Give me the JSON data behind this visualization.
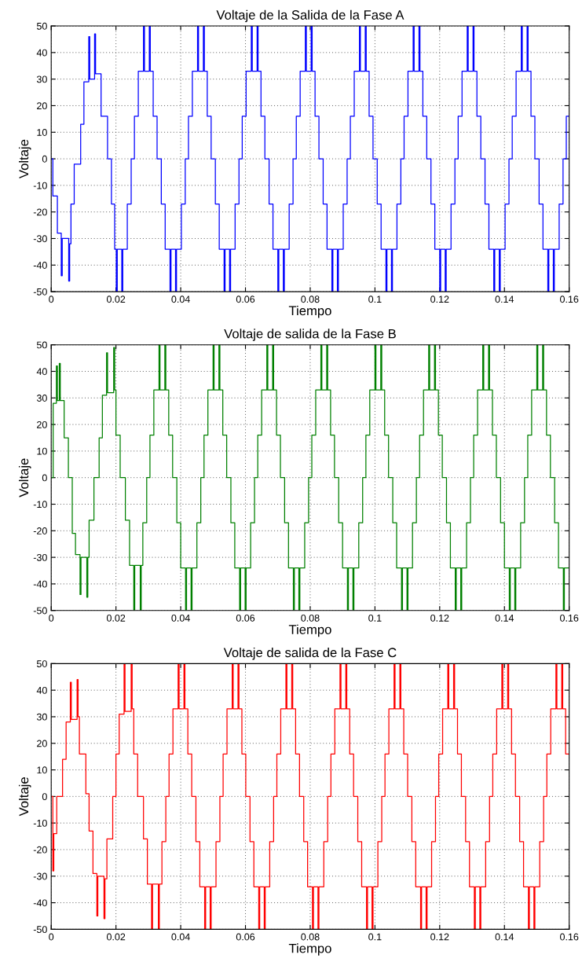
{
  "chart_data": [
    {
      "type": "step",
      "title": "Voltaje de la Salida de la Fase A",
      "xlabel": "Tiempo",
      "ylabel": "Voltaje",
      "xlim": [
        0,
        0.16
      ],
      "ylim": [
        -50,
        50
      ],
      "xticks": [
        0,
        0.02,
        0.04,
        0.06,
        0.08,
        0.1,
        0.12,
        0.14,
        0.16
      ],
      "yticks": [
        -50,
        -40,
        -30,
        -20,
        -10,
        0,
        10,
        20,
        30,
        40,
        50
      ],
      "grid": true,
      "series": [
        {
          "color": "#0000ff",
          "x": [
            0,
            0.0005,
            0.0019,
            0.0031,
            0.0034,
            0.0054,
            0.0057,
            0.0061,
            0.0071,
            0.0091,
            0.0101,
            0.0116,
            0.0119,
            0.0134,
            0.0137,
            0.0154,
            0.0174,
            0.0186,
            0.0196,
            0.0201,
            0.0204,
            0.0218,
            0.0221,
            0.0235,
            0.0247,
            0.0257,
            0.0269,
            0.0285,
            0.0288,
            0.0303,
            0.0306,
            0.0315,
            0.0327,
            0.034,
            0.0352,
            0.0367,
            0.037,
            0.0384,
            0.0387,
            0.0402,
            0.0414,
            0.0424,
            0.0436,
            0.0452,
            0.0455,
            0.047,
            0.0473,
            0.0482,
            0.0494,
            0.0507,
            0.0519,
            0.0534,
            0.0537,
            0.0551,
            0.0554,
            0.0568,
            0.058,
            0.059,
            0.0602,
            0.0618,
            0.0621,
            0.0636,
            0.0639,
            0.0648,
            0.066,
            0.0673,
            0.0685,
            0.07,
            0.0703,
            0.0717,
            0.072,
            0.0735,
            0.0747,
            0.0757,
            0.0769,
            0.0785,
            0.0788,
            0.0803,
            0.0806,
            0.0815,
            0.0827,
            0.084,
            0.0852,
            0.0867,
            0.087,
            0.0884,
            0.0887,
            0.0902,
            0.0914,
            0.0924,
            0.0936,
            0.0952,
            0.0955,
            0.097,
            0.0973,
            0.0982,
            0.0994,
            0.1007,
            0.1019,
            0.1034,
            0.1037,
            0.1051,
            0.1054,
            0.1068,
            0.108,
            0.109,
            0.1102,
            0.1118,
            0.1121,
            0.1136,
            0.1139,
            0.1148,
            0.116,
            0.1173,
            0.1185,
            0.12,
            0.1203,
            0.1217,
            0.122,
            0.1235,
            0.1247,
            0.1257,
            0.1269,
            0.1285,
            0.1288,
            0.1303,
            0.1306,
            0.1315,
            0.1327,
            0.134,
            0.1352,
            0.1367,
            0.137,
            0.1384,
            0.1387,
            0.1402,
            0.1414,
            0.1424,
            0.1436,
            0.1452,
            0.1455,
            0.147,
            0.1473,
            0.1482,
            0.1494,
            0.1507,
            0.1519,
            0.1534,
            0.1537,
            0.1551,
            0.1554,
            0.1569,
            0.1581,
            0.1591,
            0.16
          ],
          "values": [
            0,
            -14,
            -28,
            -44,
            -30,
            -46,
            -32,
            -17,
            -2,
            13,
            29,
            46,
            30,
            47,
            32,
            16,
            0,
            -17,
            -34,
            -50,
            -34,
            -50,
            -34,
            -17,
            0,
            16,
            33,
            50,
            33,
            50,
            33,
            16,
            0,
            -17,
            -34,
            -50,
            -34,
            -50,
            -34,
            -17,
            0,
            16,
            33,
            50,
            33,
            50,
            33,
            16,
            0,
            -17,
            -34,
            -50,
            -34,
            -50,
            -34,
            -17,
            0,
            16,
            33,
            50,
            33,
            50,
            33,
            16,
            0,
            -17,
            -34,
            -50,
            -34,
            -50,
            -34,
            -17,
            0,
            16,
            33,
            50,
            33,
            50,
            33,
            16,
            0,
            -17,
            -34,
            -50,
            -34,
            -50,
            -34,
            -17,
            0,
            16,
            33,
            50,
            33,
            50,
            33,
            16,
            0,
            -17,
            -34,
            -50,
            -34,
            -50,
            -34,
            -17,
            0,
            16,
            33,
            50,
            33,
            50,
            33,
            16,
            0,
            -17,
            -34,
            -50,
            -34,
            -50,
            -34,
            -17,
            0,
            16,
            33,
            50,
            33,
            50,
            33,
            16,
            0,
            -17,
            -34,
            -50,
            -34,
            -50,
            -34,
            -17,
            0,
            16,
            33,
            50,
            33,
            50,
            33,
            16,
            0,
            -17,
            -34,
            -50,
            -34,
            -50,
            -34,
            -17,
            0,
            16,
            16
          ]
        }
      ]
    },
    {
      "type": "step",
      "title": "Voltaje de salida de la Fase B",
      "xlabel": "Tiempo",
      "ylabel": "Voltaje",
      "xlim": [
        0,
        0.16
      ],
      "ylim": [
        -50,
        50
      ],
      "xticks": [
        0,
        0.02,
        0.04,
        0.06,
        0.08,
        0.1,
        0.12,
        0.14,
        0.16
      ],
      "yticks": [
        -50,
        -40,
        -30,
        -20,
        -10,
        0,
        10,
        20,
        30,
        40,
        50
      ],
      "grid": true,
      "series": [
        {
          "color": "#008000",
          "x": [
            0,
            0.0006,
            0.0016,
            0.0019,
            0.0025,
            0.0028,
            0.004,
            0.0053,
            0.0065,
            0.0075,
            0.0089,
            0.0092,
            0.011,
            0.0113,
            0.0117,
            0.0132,
            0.0148,
            0.0158,
            0.0171,
            0.0174,
            0.0193,
            0.0196,
            0.02,
            0.0213,
            0.0229,
            0.0242,
            0.0255,
            0.0258,
            0.0275,
            0.0278,
            0.0283,
            0.0295,
            0.0305,
            0.0317,
            0.0333,
            0.0336,
            0.0351,
            0.0354,
            0.0363,
            0.0375,
            0.0388,
            0.04,
            0.0415,
            0.0418,
            0.0432,
            0.0435,
            0.045,
            0.0462,
            0.0472,
            0.0484,
            0.05,
            0.0503,
            0.0518,
            0.0521,
            0.053,
            0.0542,
            0.0555,
            0.0567,
            0.0582,
            0.0585,
            0.0599,
            0.0602,
            0.0616,
            0.0628,
            0.0638,
            0.065,
            0.0666,
            0.0669,
            0.0684,
            0.0687,
            0.0696,
            0.0708,
            0.0721,
            0.0733,
            0.0748,
            0.0751,
            0.0765,
            0.0768,
            0.0783,
            0.0795,
            0.0805,
            0.0817,
            0.0833,
            0.0836,
            0.0851,
            0.0854,
            0.0863,
            0.0875,
            0.0888,
            0.09,
            0.0915,
            0.0918,
            0.0932,
            0.0935,
            0.095,
            0.0962,
            0.0972,
            0.0984,
            0.1,
            0.1003,
            0.1018,
            0.1021,
            0.103,
            0.1042,
            0.1055,
            0.1067,
            0.1082,
            0.1085,
            0.1099,
            0.1102,
            0.1116,
            0.1128,
            0.1138,
            0.115,
            0.1166,
            0.1169,
            0.1184,
            0.1187,
            0.1196,
            0.1208,
            0.1221,
            0.1233,
            0.1248,
            0.1251,
            0.1265,
            0.1268,
            0.1283,
            0.1295,
            0.1305,
            0.1317,
            0.1333,
            0.1336,
            0.1351,
            0.1354,
            0.1363,
            0.1375,
            0.1388,
            0.14,
            0.1415,
            0.1418,
            0.1432,
            0.1435,
            0.145,
            0.1462,
            0.1472,
            0.1484,
            0.15,
            0.1503,
            0.1518,
            0.1521,
            0.153,
            0.1542,
            0.1555,
            0.1567,
            0.1582,
            0.1585,
            0.16
          ],
          "values": [
            0,
            28,
            42,
            29,
            43,
            29,
            15,
            0,
            -21,
            -29,
            -44,
            -30,
            -45,
            -30,
            -16,
            0,
            15,
            31,
            47,
            32,
            49,
            33,
            16,
            0,
            -16,
            -33,
            -50,
            -33,
            -50,
            -33,
            -17,
            0,
            16,
            33,
            50,
            33,
            50,
            33,
            16,
            0,
            -17,
            -34,
            -50,
            -34,
            -50,
            -34,
            -17,
            0,
            16,
            33,
            50,
            33,
            50,
            33,
            16,
            0,
            -17,
            -34,
            -50,
            -34,
            -50,
            -34,
            -17,
            0,
            16,
            33,
            50,
            33,
            50,
            33,
            16,
            0,
            -17,
            -34,
            -50,
            -34,
            -50,
            -34,
            -17,
            0,
            16,
            33,
            50,
            33,
            50,
            33,
            16,
            0,
            -17,
            -34,
            -50,
            -34,
            -50,
            -34,
            -17,
            0,
            16,
            33,
            50,
            33,
            50,
            33,
            16,
            0,
            -17,
            -34,
            -50,
            -34,
            -50,
            -34,
            -17,
            0,
            16,
            33,
            50,
            33,
            50,
            33,
            16,
            0,
            -17,
            -34,
            -50,
            -34,
            -50,
            -34,
            -17,
            0,
            16,
            33,
            50,
            33,
            50,
            33,
            16,
            0,
            -17,
            -34,
            -50,
            -34,
            -50,
            -34,
            -17,
            0,
            16,
            33,
            50,
            33,
            50,
            33,
            16,
            0,
            -17,
            -34,
            -50,
            -34,
            -34
          ]
        }
      ]
    },
    {
      "type": "step",
      "title": "Voltaje de salida de la Fase C",
      "xlabel": "Tiempo",
      "ylabel": "Voltaje",
      "xlim": [
        0,
        0.16
      ],
      "ylim": [
        -50,
        50
      ],
      "xticks": [
        0,
        0.02,
        0.04,
        0.06,
        0.08,
        0.1,
        0.12,
        0.14,
        0.16
      ],
      "yticks": [
        -50,
        -40,
        -30,
        -20,
        -10,
        0,
        10,
        20,
        30,
        40,
        50
      ],
      "grid": true,
      "series": [
        {
          "color": "#ff0000",
          "x": [
            0,
            0.0005,
            0.0008,
            0.0017,
            0.0035,
            0.0046,
            0.0059,
            0.0062,
            0.008,
            0.0083,
            0.0087,
            0.0107,
            0.0117,
            0.0129,
            0.0141,
            0.0144,
            0.0163,
            0.0166,
            0.0172,
            0.019,
            0.02,
            0.021,
            0.0225,
            0.0228,
            0.0247,
            0.025,
            0.0255,
            0.0267,
            0.0285,
            0.0297,
            0.031,
            0.0313,
            0.0331,
            0.0334,
            0.0342,
            0.0354,
            0.0364,
            0.0376,
            0.0392,
            0.0395,
            0.041,
            0.0413,
            0.0422,
            0.0434,
            0.0447,
            0.0459,
            0.0474,
            0.0477,
            0.0491,
            0.0494,
            0.0509,
            0.0521,
            0.0531,
            0.0543,
            0.0559,
            0.0562,
            0.0577,
            0.058,
            0.0589,
            0.0601,
            0.0614,
            0.0626,
            0.0641,
            0.0644,
            0.0658,
            0.0661,
            0.0675,
            0.0687,
            0.0697,
            0.0709,
            0.0725,
            0.0728,
            0.0743,
            0.0746,
            0.0755,
            0.0767,
            0.078,
            0.0792,
            0.0807,
            0.081,
            0.0824,
            0.0827,
            0.0842,
            0.0854,
            0.0864,
            0.0876,
            0.0892,
            0.0895,
            0.091,
            0.0913,
            0.0922,
            0.0934,
            0.0947,
            0.0959,
            0.0974,
            0.0977,
            0.0991,
            0.0994,
            0.1009,
            0.1021,
            0.1031,
            0.1043,
            0.1059,
            0.1062,
            0.1077,
            0.108,
            0.1089,
            0.1101,
            0.1114,
            0.1126,
            0.1141,
            0.1144,
            0.1158,
            0.1161,
            0.1175,
            0.1187,
            0.1197,
            0.1209,
            0.1225,
            0.1228,
            0.1243,
            0.1246,
            0.1255,
            0.1267,
            0.128,
            0.1292,
            0.1307,
            0.131,
            0.1324,
            0.1327,
            0.1342,
            0.1354,
            0.1364,
            0.1376,
            0.1392,
            0.1395,
            0.141,
            0.1413,
            0.1422,
            0.1434,
            0.1447,
            0.1459,
            0.1474,
            0.1477,
            0.1491,
            0.1494,
            0.1509,
            0.1521,
            0.1531,
            0.1543,
            0.1559,
            0.1562,
            0.1577,
            0.158,
            0.1589,
            0.16
          ],
          "values": [
            0,
            -28,
            -14,
            0,
            14,
            28,
            43,
            29,
            44,
            30,
            16,
            1,
            -13,
            -29,
            -45,
            -30,
            -46,
            -31,
            -16,
            0,
            16,
            31,
            50,
            32,
            50,
            33,
            16,
            0,
            -16,
            -33,
            -50,
            -33,
            -50,
            -33,
            -17,
            0,
            16,
            33,
            50,
            33,
            50,
            33,
            16,
            0,
            -17,
            -34,
            -50,
            -34,
            -50,
            -34,
            -17,
            0,
            16,
            33,
            50,
            33,
            50,
            33,
            16,
            0,
            -17,
            -34,
            -50,
            -34,
            -50,
            -34,
            -17,
            0,
            16,
            33,
            50,
            33,
            50,
            33,
            16,
            0,
            -17,
            -34,
            -50,
            -34,
            -50,
            -34,
            -17,
            0,
            16,
            33,
            50,
            33,
            50,
            33,
            16,
            0,
            -17,
            -34,
            -50,
            -34,
            -50,
            -34,
            -17,
            0,
            16,
            33,
            50,
            33,
            50,
            33,
            16,
            0,
            -17,
            -34,
            -50,
            -34,
            -50,
            -34,
            -17,
            0,
            16,
            33,
            50,
            33,
            50,
            33,
            16,
            0,
            -17,
            -34,
            -50,
            -34,
            -50,
            -34,
            -17,
            0,
            16,
            33,
            50,
            33,
            50,
            33,
            16,
            0,
            -17,
            -34,
            -50,
            -34,
            -50,
            -34,
            -17,
            0,
            16,
            33,
            50,
            33,
            50,
            33,
            16,
            16
          ]
        }
      ]
    }
  ]
}
